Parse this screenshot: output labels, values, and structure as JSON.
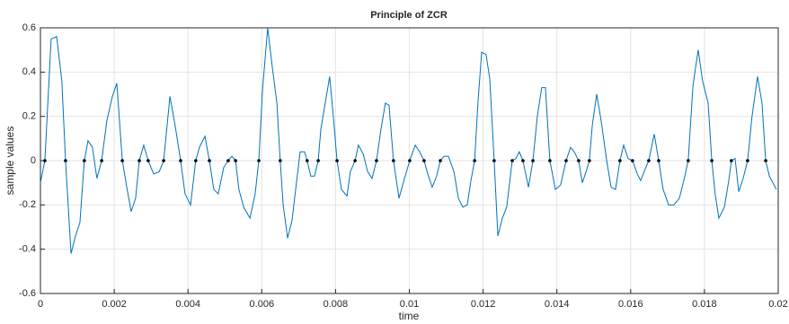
{
  "chart_data": {
    "type": "line",
    "title": "Principle of ZCR",
    "xlabel": "time",
    "ylabel": "sample values",
    "xlim": [
      0,
      0.02
    ],
    "xticks": [
      0,
      0.002,
      0.004,
      0.006,
      0.008,
      0.01,
      0.012,
      0.014,
      0.016,
      0.018,
      0.02
    ],
    "ylim": [
      -0.6,
      0.6
    ],
    "yticks": [
      -0.6,
      -0.4,
      -0.2,
      0,
      0.2,
      0.4,
      0.6
    ],
    "grid": true,
    "series": [
      {
        "color": "#0072bd",
        "style": "line",
        "x": [
          0,
          0.00012,
          0.00029,
          0.00044,
          0.00058,
          0.00068,
          0.00083,
          0.00095,
          0.00107,
          0.00119,
          0.00129,
          0.00141,
          0.00153,
          0.00166,
          0.0018,
          0.00195,
          0.00207,
          0.00222,
          0.00234,
          0.00246,
          0.00258,
          0.00268,
          0.0028,
          0.00292,
          0.00307,
          0.00322,
          0.00334,
          0.00351,
          0.00365,
          0.0038,
          0.00392,
          0.00407,
          0.00421,
          0.00431,
          0.00446,
          0.00458,
          0.0047,
          0.00482,
          0.00497,
          0.00509,
          0.00519,
          0.00529,
          0.00538,
          0.00551,
          0.00568,
          0.00582,
          0.00592,
          0.00602,
          0.00616,
          0.00628,
          0.00641,
          0.0065,
          0.00658,
          0.0067,
          0.00682,
          0.00694,
          0.00704,
          0.00716,
          0.00723,
          0.00733,
          0.00743,
          0.00753,
          0.0076,
          0.00772,
          0.00784,
          0.00794,
          0.00804,
          0.00816,
          0.00831,
          0.0084,
          0.00853,
          0.00862,
          0.00875,
          0.00887,
          0.00899,
          0.00911,
          0.00923,
          0.00935,
          0.00945,
          0.00957,
          0.00972,
          0.00987,
          0.01001,
          0.01016,
          0.01028,
          0.0104,
          0.0105,
          0.01062,
          0.01074,
          0.01084,
          0.01094,
          0.01106,
          0.01121,
          0.01133,
          0.01145,
          0.01157,
          0.01167,
          0.01177,
          0.01186,
          0.01196,
          0.01208,
          0.01218,
          0.0123,
          0.0124,
          0.01252,
          0.01264,
          0.01279,
          0.01289,
          0.01298,
          0.01308,
          0.01323,
          0.01335,
          0.01347,
          0.01359,
          0.01369,
          0.01381,
          0.01396,
          0.0141,
          0.01425,
          0.01437,
          0.01447,
          0.01459,
          0.01469,
          0.01481,
          0.01488,
          0.01496,
          0.01508,
          0.0152,
          0.01535,
          0.01547,
          0.01559,
          0.01571,
          0.01581,
          0.01593,
          0.01605,
          0.01618,
          0.01627,
          0.01639,
          0.01649,
          0.01664,
          0.01676,
          0.01688,
          0.01703,
          0.01717,
          0.01732,
          0.01744,
          0.01756,
          0.01769,
          0.01783,
          0.01795,
          0.0181,
          0.0182,
          0.01829,
          0.01839,
          0.01854,
          0.01866,
          0.01873,
          0.01883,
          0.01893,
          0.01905,
          0.01917,
          0.01929,
          0.01944,
          0.01956,
          0.01966,
          0.01976,
          0.01995
        ],
        "values": [
          -0.1,
          0,
          0.55,
          0.56,
          0.36,
          0,
          -0.42,
          -0.34,
          -0.28,
          0,
          0.09,
          0.06,
          -0.08,
          0,
          0.18,
          0.29,
          0.35,
          0,
          -0.12,
          -0.23,
          -0.17,
          0,
          0.07,
          0,
          -0.06,
          -0.05,
          0,
          0.29,
          0.16,
          0,
          -0.15,
          -0.2,
          0,
          0.06,
          0.11,
          0,
          -0.13,
          -0.15,
          -0.03,
          0,
          0.02,
          0,
          -0.13,
          -0.21,
          -0.26,
          -0.15,
          0,
          0.32,
          0.6,
          0.43,
          0.26,
          0,
          -0.2,
          -0.35,
          -0.27,
          -0.1,
          0.04,
          0.04,
          0,
          -0.07,
          -0.07,
          0,
          0.14,
          0.26,
          0.38,
          0.2,
          0,
          -0.13,
          -0.16,
          -0.05,
          0,
          0.07,
          0.03,
          -0.05,
          -0.08,
          0,
          0.14,
          0.26,
          0.25,
          0,
          -0.17,
          -0.08,
          0,
          0.07,
          0.04,
          0,
          -0.06,
          -0.12,
          -0.07,
          0,
          0.02,
          0.02,
          -0.05,
          -0.17,
          -0.21,
          -0.2,
          -0.09,
          0,
          0.26,
          0.49,
          0.48,
          0.37,
          0,
          -0.34,
          -0.26,
          -0.21,
          0,
          0.01,
          0.04,
          0,
          -0.12,
          0,
          0.2,
          0.33,
          0.33,
          0,
          -0.13,
          -0.11,
          0,
          0.06,
          0.04,
          0,
          -0.1,
          -0.04,
          0,
          0.16,
          0.3,
          0.18,
          0,
          -0.12,
          -0.13,
          0,
          0.07,
          0.01,
          0,
          -0.06,
          -0.09,
          -0.04,
          0,
          0.12,
          0,
          -0.13,
          -0.2,
          -0.2,
          -0.17,
          -0.09,
          0,
          0.34,
          0.5,
          0.36,
          0.26,
          0,
          -0.15,
          -0.26,
          -0.21,
          -0.09,
          0,
          0.01,
          -0.14,
          -0.08,
          0,
          0.2,
          0.38,
          0.26,
          0,
          -0.07,
          -0.13
        ]
      },
      {
        "color": "#000000",
        "style": "marker",
        "x": [
          0.00012,
          0.00068,
          0.00119,
          0.00166,
          0.00222,
          0.00268,
          0.00292,
          0.00334,
          0.0038,
          0.00421,
          0.00458,
          0.00509,
          0.00529,
          0.00592,
          0.0065,
          0.00723,
          0.00753,
          0.00804,
          0.00853,
          0.00911,
          0.00957,
          0.01001,
          0.0104,
          0.01084,
          0.01177,
          0.0123,
          0.01279,
          0.01308,
          0.01335,
          0.01381,
          0.01425,
          0.01459,
          0.01488,
          0.01571,
          0.01605,
          0.01649,
          0.01676,
          0.01756,
          0.0182,
          0.01873,
          0.01917,
          0.01966
        ],
        "values": [
          0,
          0,
          0,
          0,
          0,
          0,
          0,
          0,
          0,
          0,
          0,
          0,
          0,
          0,
          0,
          0,
          0,
          0,
          0,
          0,
          0,
          0,
          0,
          0,
          0,
          0,
          0,
          0,
          0,
          0,
          0,
          0,
          0,
          0,
          0,
          0,
          0,
          0,
          0,
          0,
          0,
          0
        ]
      }
    ]
  }
}
